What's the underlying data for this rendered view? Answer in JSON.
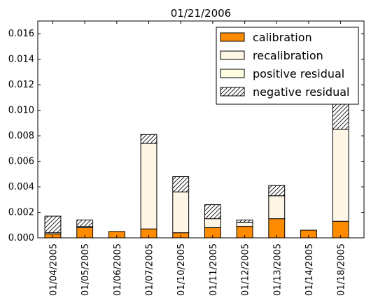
{
  "chart_data": {
    "type": "bar",
    "stacked": true,
    "title": "01/21/2006",
    "xlabel": "",
    "ylabel": "",
    "ylim": [
      0,
      0.017
    ],
    "yticks": [
      "0.000",
      "0.002",
      "0.004",
      "0.006",
      "0.008",
      "0.010",
      "0.012",
      "0.014",
      "0.016"
    ],
    "categories": [
      "01/04/2005",
      "01/05/2005",
      "01/06/2005",
      "01/07/2005",
      "01/10/2005",
      "01/11/2005",
      "01/12/2005",
      "01/13/2005",
      "01/14/2005",
      "01/18/2005"
    ],
    "series": [
      {
        "name": "calibration",
        "color": "#ff8c00",
        "pattern": "solid",
        "values": [
          0.0003,
          0.0008,
          0.0005,
          0.0007,
          0.0004,
          0.0008,
          0.0009,
          0.0015,
          0.0006,
          0.0013
        ]
      },
      {
        "name": "recalibration",
        "color": "#fdf5e6",
        "pattern": "solid",
        "values": [
          0.0001,
          0.0001,
          0.0,
          0.0067,
          0.0032,
          0.0007,
          0.0003,
          0.0018,
          0.0,
          0.0072
        ]
      },
      {
        "name": "positive residual",
        "color": "#ffffe0",
        "pattern": "solid",
        "values": [
          0,
          0,
          0,
          0,
          0,
          0,
          0,
          0,
          0,
          0
        ]
      },
      {
        "name": "negative residual",
        "color": "#ffffff",
        "pattern": "hatch",
        "values": [
          0.0013,
          0.0005,
          0.0,
          0.0007,
          0.0012,
          0.0011,
          0.0002,
          0.0008,
          0.0,
          0.0021
        ]
      }
    ],
    "legend": {
      "position": "top-right"
    },
    "grid": false
  }
}
